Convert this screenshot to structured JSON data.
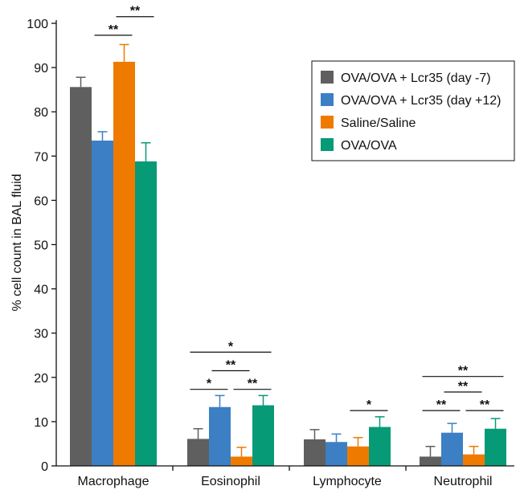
{
  "chart_data": {
    "type": "bar",
    "title": "",
    "xlabel": "",
    "ylabel": "% cell count in BAL fluid",
    "ylim": [
      0,
      100
    ],
    "yticks": [
      0,
      10,
      20,
      30,
      40,
      50,
      60,
      70,
      80,
      90,
      100
    ],
    "categories": [
      "Macrophage",
      "Eosinophil",
      "Lymphocyte",
      "Neutrophil"
    ],
    "legend_position": "top-right",
    "grid": false,
    "series": [
      {
        "name": "OVA/OVA + Lcr35 (day -7)",
        "color": "#5f5f5f",
        "values": [
          85.6,
          6.1,
          6.0,
          2.1
        ],
        "errors": [
          2.2,
          2.3,
          2.2,
          2.3
        ]
      },
      {
        "name": "OVA/OVA + Lcr35 (day +12)",
        "color": "#3c7fc4",
        "values": [
          73.5,
          13.3,
          5.4,
          7.5
        ],
        "errors": [
          2.0,
          2.6,
          1.8,
          2.1
        ]
      },
      {
        "name": "Saline/Saline",
        "color": "#ef7a00",
        "values": [
          91.3,
          2.1,
          4.4,
          2.6
        ],
        "errors": [
          3.9,
          2.1,
          2.0,
          1.8
        ]
      },
      {
        "name": "OVA/OVA",
        "color": "#079a77",
        "values": [
          68.8,
          13.7,
          8.8,
          8.4
        ],
        "errors": [
          4.2,
          2.2,
          2.3,
          2.3
        ]
      }
    ],
    "significance": [
      {
        "category": 0,
        "from_series": 1,
        "to_series": 2,
        "label": "**",
        "y": 97.3
      },
      {
        "category": 0,
        "from_series": 2,
        "to_series": 3,
        "label": "**",
        "y": 101.5
      },
      {
        "category": 1,
        "from_series": 0,
        "to_series": 1,
        "label": "*",
        "y": 17.3
      },
      {
        "category": 1,
        "from_series": 1,
        "to_series": 2,
        "label": "**",
        "y": 21.5
      },
      {
        "category": 1,
        "from_series": 2,
        "to_series": 3,
        "label": "**",
        "y": 17.3
      },
      {
        "category": 1,
        "from_series": 0,
        "to_series": 3,
        "label": "*",
        "y": 25.7
      },
      {
        "category": 2,
        "from_series": 2,
        "to_series": 3,
        "label": "*",
        "y": 12.5
      },
      {
        "category": 3,
        "from_series": 0,
        "to_series": 1,
        "label": "**",
        "y": 12.5
      },
      {
        "category": 3,
        "from_series": 1,
        "to_series": 2,
        "label": "**",
        "y": 16.7
      },
      {
        "category": 3,
        "from_series": 2,
        "to_series": 3,
        "label": "**",
        "y": 12.5
      },
      {
        "category": 3,
        "from_series": 0,
        "to_series": 3,
        "label": "**",
        "y": 20.2
      }
    ]
  }
}
